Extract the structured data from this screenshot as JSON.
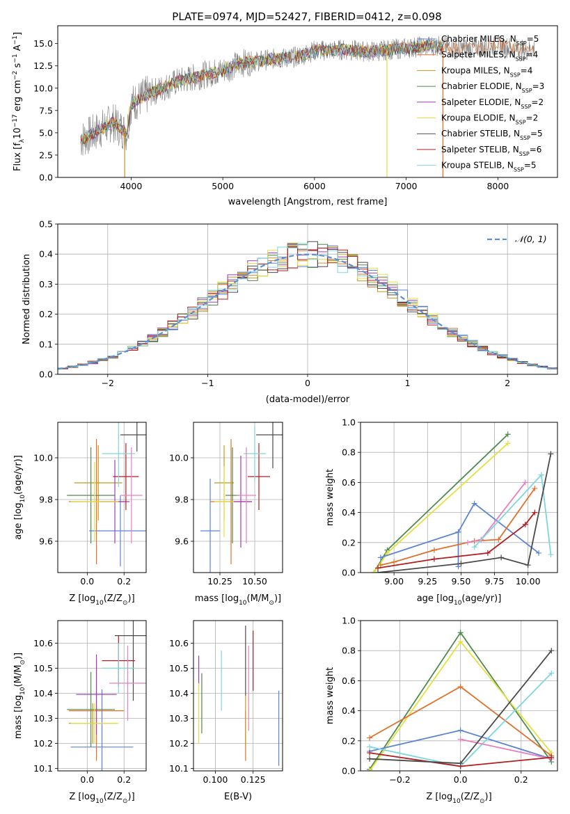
{
  "title": "PLATE=0974, MJD=52427, FIBERID=0412, z=0.098",
  "colors": {
    "Chabrier MILES": "#5b84d6",
    "Salpeter MILES": "#e0702a",
    "Kroupa MILES": "#c7961d",
    "Chabrier ELODIE": "#4e8a4e",
    "Salpeter ELODIE": "#a13bb8",
    "Kroupa ELODIE": "#e3e040",
    "Chabrier STELIB": "#4a4a4a",
    "Salpeter STELIB": "#b21d1d",
    "Kroupa STELIB": "#7ed6dd",
    "extra": "#e87fbf",
    "gauss": "#5b8fd6",
    "data": "#808080"
  },
  "chart_data": [
    {
      "type": "line",
      "id": "spectrum",
      "title": "PLATE=0974, MJD=52427, FIBERID=0412, z=0.098",
      "xlabel": "wavelength [Angstrom, rest frame]",
      "ylabel": "Flux [f",
      "ylabel_sub": "λ",
      "ylabel_rest": "10",
      "ylabel_exp": "−17",
      "ylabel_unit": " erg cm",
      "xlim": [
        3200,
        8650
      ],
      "ylim": [
        0,
        17
      ],
      "xticks": [
        4000,
        5000,
        6000,
        7000,
        8000
      ],
      "yticks": [
        0.0,
        2.5,
        5.0,
        7.5,
        10.0,
        12.5,
        15.0
      ],
      "ytick_labels": [
        "0.0",
        "2.5",
        "5.0",
        "7.5",
        "10.0",
        "12.5",
        "15.0"
      ],
      "continuum": [
        [
          3450,
          4.2
        ],
        [
          3600,
          5.0
        ],
        [
          3800,
          6.2
        ],
        [
          3950,
          5.0
        ],
        [
          4000,
          8.2
        ],
        [
          4200,
          9.4
        ],
        [
          4500,
          10.7
        ],
        [
          4800,
          11.5
        ],
        [
          5000,
          12.0
        ],
        [
          5200,
          12.8
        ],
        [
          5500,
          13.2
        ],
        [
          5800,
          13.5
        ],
        [
          6000,
          14.2
        ],
        [
          6300,
          14.3
        ],
        [
          6600,
          14.1
        ],
        [
          7000,
          14.5
        ],
        [
          7300,
          14.8
        ],
        [
          7600,
          14.4
        ],
        [
          8000,
          14.8
        ],
        [
          8300,
          14.2
        ],
        [
          8400,
          14.5
        ]
      ],
      "legend": [
        {
          "label": "Chabrier MILES, N",
          "sub": "SSP",
          "count": "=5"
        },
        {
          "label": "Salpeter MILES, N",
          "sub": "SSP",
          "count": "=4"
        },
        {
          "label": "Kroupa MILES, N",
          "sub": "SSP",
          "count": "=4"
        },
        {
          "label": "Chabrier ELODIE, N",
          "sub": "SSP",
          "count": "=3"
        },
        {
          "label": "Salpeter ELODIE, N",
          "sub": "SSP",
          "count": "=2"
        },
        {
          "label": "Kroupa ELODIE, N",
          "sub": "SSP",
          "count": "=2"
        },
        {
          "label": "Chabrier STELIB, N",
          "sub": "SSP",
          "count": "=5"
        },
        {
          "label": "Salpeter STELIB, N",
          "sub": "SSP",
          "count": "=6"
        },
        {
          "label": "Kroupa STELIB, N",
          "sub": "SSP",
          "count": "=5"
        }
      ],
      "legend_placement": "right"
    },
    {
      "type": "histogram",
      "id": "residuals",
      "xlabel": "(data-model)/error",
      "ylabel": "Normed distribution",
      "xlim": [
        -2.5,
        2.5
      ],
      "ylim": [
        0,
        0.5
      ],
      "xticks": [
        -2,
        -1,
        0,
        1,
        2
      ],
      "xtick_labels": [
        "−2",
        "−1",
        "0",
        "1",
        "2"
      ],
      "yticks": [
        0.0,
        0.1,
        0.2,
        0.3,
        0.4,
        0.5
      ],
      "ytick_labels": [
        "0.0",
        "0.1",
        "0.2",
        "0.3",
        "0.4",
        "0.5"
      ],
      "bin_width": 0.1,
      "gaussian_label": "𝒩(0, 1)",
      "legend_placement": "top-right",
      "grid": true
    },
    {
      "type": "scatter",
      "id": "age-vs-Z",
      "xlabel": "Z [log",
      "xlabel_sub": "10",
      "xlabel_rest": "(Z/Z",
      "xlabel_sub2": "⊙",
      "xlabel_end": ")]",
      "ylabel": "age  [log",
      "ylabel_sub": "10",
      "ylabel_rest": "(age/yr)]",
      "xlim": [
        -0.16,
        0.32
      ],
      "ylim": [
        9.45,
        10.17
      ],
      "xticks": [
        0.0,
        0.2
      ],
      "xtick_labels": [
        "0.0",
        "0.2"
      ],
      "yticks": [
        9.6,
        9.8,
        10.0
      ],
      "ytick_labels": [
        "9.6",
        "9.8",
        "10.0"
      ],
      "grid": true,
      "points": [
        {
          "model": "Chabrier MILES",
          "x": 0.18,
          "xerr": 0.17,
          "y": 9.65,
          "yerr": 0.17
        },
        {
          "model": "Salpeter MILES",
          "x": 0.05,
          "xerr": 0.15,
          "y": 9.79,
          "yerr": 0.3
        },
        {
          "model": "Kroupa MILES",
          "x": 0.06,
          "xerr": 0.13,
          "y": 9.88,
          "yerr": 0.18
        },
        {
          "model": "Chabrier ELODIE",
          "x": 0.02,
          "xerr": 0.13,
          "y": 9.82,
          "yerr": 0.23
        },
        {
          "model": "Salpeter ELODIE",
          "x": 0.15,
          "xerr": 0.08,
          "y": 9.79,
          "yerr": 0.2
        },
        {
          "model": "Kroupa ELODIE",
          "x": 0.04,
          "xerr": 0.13,
          "y": 9.79,
          "yerr": 0.19
        },
        {
          "model": "Chabrier STELIB",
          "x": 0.27,
          "xerr": 0.09,
          "y": 10.11,
          "yerr": 0.08
        },
        {
          "model": "Salpeter STELIB",
          "x": 0.21,
          "xerr": 0.07,
          "y": 9.91,
          "yerr": 0.16
        },
        {
          "model": "Kroupa STELIB",
          "x": 0.17,
          "xerr": 0.09,
          "y": 10.02,
          "yerr": 0.16
        },
        {
          "model": "extra",
          "x": 0.24,
          "xerr": 0.06,
          "y": 9.82,
          "yerr": 0.23
        }
      ]
    },
    {
      "type": "scatter",
      "id": "age-vs-mass",
      "xlabel": "mass [log",
      "xlabel_sub": "10",
      "xlabel_rest": "(M/M",
      "xlabel_sub2": "⊙",
      "xlabel_end": ")]",
      "xlim": [
        10.06,
        10.7
      ],
      "ylim": [
        9.45,
        10.17
      ],
      "xticks": [
        10.25,
        10.5
      ],
      "xtick_labels": [
        "10.25",
        "10.50"
      ],
      "yticks": [
        9.6,
        9.8,
        10.0
      ],
      "ytick_labels": [
        "9.6",
        "9.8",
        "10.0"
      ],
      "grid": true,
      "points": [
        {
          "model": "Chabrier MILES",
          "x": 10.18,
          "xerr": 0.07,
          "y": 9.65,
          "yerr": 0.25
        },
        {
          "model": "Salpeter MILES",
          "x": 10.33,
          "xerr": 0.15,
          "y": 9.79,
          "yerr": 0.3
        },
        {
          "model": "Kroupa MILES",
          "x": 10.28,
          "xerr": 0.07,
          "y": 9.88,
          "yerr": 0.18
        },
        {
          "model": "Chabrier ELODIE",
          "x": 10.34,
          "xerr": 0.05,
          "y": 9.82,
          "yerr": 0.23
        },
        {
          "model": "Salpeter ELODIE",
          "x": 10.4,
          "xerr": 0.08,
          "y": 9.79,
          "yerr": 0.22
        },
        {
          "model": "Kroupa ELODIE",
          "x": 10.28,
          "xerr": 0.07,
          "y": 9.79,
          "yerr": 0.17
        },
        {
          "model": "Chabrier STELIB",
          "x": 10.63,
          "xerr": 0.12,
          "y": 10.11,
          "yerr": 0.16
        },
        {
          "model": "Salpeter STELIB",
          "x": 10.53,
          "xerr": 0.08,
          "y": 9.91,
          "yerr": 0.16
        },
        {
          "model": "Kroupa STELIB",
          "x": 10.5,
          "xerr": 0.08,
          "y": 10.02,
          "yerr": 0.13
        },
        {
          "model": "extra",
          "x": 10.44,
          "xerr": 0.07,
          "y": 9.82,
          "yerr": 0.23
        }
      ]
    },
    {
      "type": "line",
      "id": "weight-vs-age",
      "xlabel": "age  [log",
      "xlabel_sub": "10",
      "xlabel_rest": "(age/yr)]",
      "ylabel": "mass weight",
      "xlim": [
        8.75,
        10.22
      ],
      "ylim": [
        0,
        1
      ],
      "xticks": [
        9.0,
        9.25,
        9.5,
        9.75,
        10.0
      ],
      "xtick_labels": [
        "9.00",
        "9.25",
        "9.50",
        "9.75",
        "10.00"
      ],
      "yticks": [
        0.0,
        0.2,
        0.4,
        0.6,
        0.8,
        1.0
      ],
      "ytick_labels": [
        "0.0",
        "0.2",
        "0.4",
        "0.6",
        "0.8",
        "1.0"
      ],
      "grid": true,
      "series": [
        {
          "model": "Chabrier ELODIE",
          "x": [
            8.85,
            8.95,
            9.85
          ],
          "y": [
            0.0,
            0.15,
            0.92
          ]
        },
        {
          "model": "Kroupa ELODIE",
          "x": [
            8.85,
            8.95,
            9.85
          ],
          "y": [
            0.0,
            0.13,
            0.86
          ]
        },
        {
          "model": "Chabrier MILES",
          "x": [
            8.9,
            9.48,
            9.6,
            10.08
          ],
          "y": [
            0.1,
            0.27,
            0.46,
            0.13
          ]
        },
        {
          "model": "Chabrier MILES",
          "x": [
            9.48,
            9.48
          ],
          "y": [
            0.27,
            0.04
          ]
        },
        {
          "model": "Salpeter MILES",
          "x": [
            8.9,
            9.0,
            9.3,
            9.6,
            9.78,
            10.05
          ],
          "y": [
            0.05,
            0.07,
            0.15,
            0.21,
            0.22,
            0.56
          ]
        },
        {
          "model": "extra",
          "x": [
            9.55,
            9.65,
            9.98
          ],
          "y": [
            0.2,
            0.22,
            0.6
          ]
        },
        {
          "model": "Kroupa STELIB",
          "x": [
            9.6,
            10.1,
            10.17
          ],
          "y": [
            0.17,
            0.65,
            0.12
          ]
        },
        {
          "model": "Salpeter STELIB",
          "x": [
            8.88,
            9.3,
            9.7,
            9.98,
            10.05
          ],
          "y": [
            0.03,
            0.09,
            0.13,
            0.32,
            0.4
          ]
        },
        {
          "model": "Chabrier STELIB",
          "x": [
            8.88,
            9.5,
            9.8,
            10.0,
            10.17
          ],
          "y": [
            0.0,
            0.06,
            0.1,
            0.05,
            0.79
          ]
        }
      ]
    },
    {
      "type": "scatter",
      "id": "mass-vs-Z",
      "xlabel": "Z [log",
      "xlabel_sub": "10",
      "xlabel_rest": "(Z/Z",
      "xlabel_sub2": "⊙",
      "xlabel_end": ")]",
      "ylabel": "mass [log",
      "ylabel_sub": "10",
      "ylabel_rest": "(M/M",
      "ylabel_sub2": "⊙",
      "ylabel_end": ")]",
      "xlim": [
        -0.16,
        0.32
      ],
      "ylim": [
        10.09,
        10.69
      ],
      "xticks": [
        0.0,
        0.2
      ],
      "xtick_labels": [
        "0.0",
        "0.2"
      ],
      "yticks": [
        10.1,
        10.2,
        10.3,
        10.4,
        10.5,
        10.6
      ],
      "ytick_labels": [
        "10.1",
        "10.2",
        "10.3",
        "10.4",
        "10.5",
        "10.6"
      ],
      "grid": true,
      "points": [
        {
          "model": "Chabrier MILES",
          "x": 0.08,
          "xerr": 0.17,
          "y": 10.185,
          "yerr": 0.23
        },
        {
          "model": "Salpeter MILES",
          "x": 0.05,
          "xerr": 0.15,
          "y": 10.33,
          "yerr": 0.2
        },
        {
          "model": "Kroupa MILES",
          "x": 0.03,
          "xerr": 0.13,
          "y": 10.28,
          "yerr": 0.08
        },
        {
          "model": "Chabrier ELODIE",
          "x": 0.02,
          "xerr": 0.13,
          "y": 10.335,
          "yerr": 0.15
        },
        {
          "model": "Salpeter ELODIE",
          "x": 0.05,
          "xerr": 0.11,
          "y": 10.395,
          "yerr": 0.16
        },
        {
          "model": "Kroupa ELODIE",
          "x": 0.04,
          "xerr": 0.13,
          "y": 10.28,
          "yerr": 0.08
        },
        {
          "model": "Chabrier STELIB",
          "x": 0.25,
          "xerr": 0.1,
          "y": 10.63,
          "yerr": 0.26
        },
        {
          "model": "Salpeter STELIB",
          "x": 0.17,
          "xerr": 0.09,
          "y": 10.53,
          "yerr": 0.1
        },
        {
          "model": "Kroupa STELIB",
          "x": 0.17,
          "xerr": 0.09,
          "y": 10.5,
          "yerr": 0.1
        },
        {
          "model": "extra",
          "x": 0.22,
          "xerr": 0.1,
          "y": 10.44,
          "yerr": 0.15
        }
      ]
    },
    {
      "type": "scatter",
      "id": "mass-vs-EBV",
      "xlabel": "E(B-V)",
      "xlim": [
        0.0855,
        0.1445
      ],
      "ylim": [
        10.09,
        10.69
      ],
      "xticks": [
        0.1,
        0.125
      ],
      "xtick_labels": [
        "0.100",
        "0.125"
      ],
      "yticks": [
        10.1,
        10.2,
        10.3,
        10.4,
        10.5,
        10.6
      ],
      "ytick_labels": [
        "10.1",
        "10.2",
        "10.3",
        "10.4",
        "10.5",
        "10.6"
      ],
      "grid": true,
      "points": [
        {
          "model": "Chabrier MILES",
          "x": 0.142,
          "y": 10.26,
          "yerr": 0.15
        },
        {
          "model": "Salpeter MILES",
          "x": 0.12,
          "y": 10.23,
          "yerr": 0.1
        },
        {
          "model": "Kroupa MILES",
          "x": 0.12,
          "y": 10.29,
          "yerr": 0.1
        },
        {
          "model": "Chabrier ELODIE",
          "x": 0.091,
          "y": 10.36,
          "yerr": 0.12
        },
        {
          "model": "Salpeter ELODIE",
          "x": 0.089,
          "y": 10.49,
          "yerr": 0.06
        },
        {
          "model": "Kroupa ELODIE",
          "x": 0.089,
          "y": 10.32,
          "yerr": 0.12
        },
        {
          "model": "Chabrier STELIB",
          "x": 0.12,
          "y": 10.53,
          "yerr": 0.14
        },
        {
          "model": "Salpeter STELIB",
          "x": 0.125,
          "y": 10.53,
          "yerr": 0.12
        },
        {
          "model": "Kroupa STELIB",
          "x": 0.104,
          "y": 10.45,
          "yerr": 0.12
        },
        {
          "model": "extra",
          "x": 0.122,
          "y": 10.42,
          "yerr": 0.17
        }
      ]
    },
    {
      "type": "line",
      "id": "weight-vs-Z",
      "xlabel": "Z [log",
      "xlabel_sub": "10",
      "xlabel_rest": "(Z/Z",
      "xlabel_sub2": "⊙",
      "xlabel_end": ")]",
      "ylabel": "mass weight",
      "xlim": [
        -0.33,
        0.32
      ],
      "ylim": [
        0,
        1
      ],
      "xticks": [
        -0.2,
        0.0,
        0.2
      ],
      "xtick_labels": [
        "−0.2",
        "0.0",
        "0.2"
      ],
      "yticks": [
        0.0,
        0.2,
        0.4,
        0.6,
        0.8,
        1.0
      ],
      "ytick_labels": [
        "0.0",
        "0.2",
        "0.4",
        "0.6",
        "0.8",
        "1.0"
      ],
      "grid": true,
      "series": [
        {
          "model": "Chabrier ELODIE",
          "x": [
            -0.3,
            0.0,
            0.3
          ],
          "y": [
            0.01,
            0.92,
            0.06
          ]
        },
        {
          "model": "Kroupa ELODIE",
          "x": [
            -0.3,
            0.0,
            0.3
          ],
          "y": [
            0.0,
            0.86,
            0.12
          ]
        },
        {
          "model": "Salpeter MILES",
          "x": [
            -0.3,
            0.0,
            0.3
          ],
          "y": [
            0.22,
            0.56,
            0.1
          ]
        },
        {
          "model": "Chabrier MILES",
          "x": [
            -0.3,
            0.0,
            0.3
          ],
          "y": [
            0.13,
            0.27,
            0.08
          ]
        },
        {
          "model": "Kroupa STELIB",
          "x": [
            -0.3,
            0.0,
            0.3
          ],
          "y": [
            0.16,
            0.03,
            0.65
          ]
        },
        {
          "model": "extra",
          "x": [
            0.0,
            0.3
          ],
          "y": [
            0.21,
            0.08
          ]
        },
        {
          "model": "Salpeter STELIB",
          "x": [
            -0.3,
            0.0,
            0.3
          ],
          "y": [
            0.12,
            0.03,
            0.09
          ]
        },
        {
          "model": "Chabrier STELIB",
          "x": [
            -0.3,
            0.0,
            0.3
          ],
          "y": [
            0.08,
            0.05,
            0.8
          ]
        }
      ]
    }
  ]
}
